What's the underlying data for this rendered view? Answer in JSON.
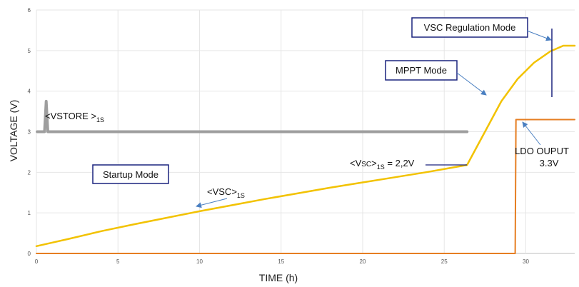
{
  "chart_data": {
    "type": "line",
    "xlabel": "TIME (h)",
    "ylabel": "VOLTAGE (V)",
    "xlim": [
      0,
      33
    ],
    "ylim": [
      0,
      6
    ],
    "x_ticks": [
      "0",
      "5",
      "10",
      "15",
      "20",
      "25",
      "30"
    ],
    "y_ticks": [
      "0",
      "1",
      "2",
      "3",
      "4",
      "5",
      "6"
    ],
    "grid": "both",
    "series": [
      {
        "name": "<VSC>1S",
        "color": "#f2c200",
        "x": [
          0,
          1,
          2,
          4,
          6,
          8,
          10,
          12,
          14,
          16,
          18,
          20,
          22,
          24,
          26.4,
          27.5,
          28.5,
          29.5,
          30.5,
          31.5,
          32.3,
          33
        ],
        "y": [
          0.18,
          0.27,
          0.36,
          0.55,
          0.72,
          0.88,
          1.04,
          1.19,
          1.34,
          1.48,
          1.62,
          1.75,
          1.88,
          2.01,
          2.18,
          3.0,
          3.75,
          4.3,
          4.7,
          4.98,
          5.12,
          5.12
        ]
      },
      {
        "name": "<VSTORE >1S",
        "color": "#9e9e9e",
        "x": [
          0.05,
          0.5,
          0.6,
          0.7,
          1,
          5,
          10,
          15,
          20,
          25,
          26.4
        ],
        "y": [
          3.0,
          3.0,
          3.75,
          3.0,
          3.0,
          3.0,
          3.0,
          3.0,
          3.0,
          3.0,
          3.0
        ]
      },
      {
        "name": "LDO OUPUT 3.3V",
        "color": "#e67e22",
        "x": [
          0,
          29.35,
          29.4,
          33
        ],
        "y": [
          0,
          0,
          3.3,
          3.3
        ]
      }
    ],
    "annotations": {
      "startup": "Startup Mode",
      "mppt": "MPPT Mode",
      "vsc_reg": "VSC Regulation Mode",
      "vstore_main": "<VSTORE >",
      "vstore_sub": "1S",
      "vsc_main": "<VSC>",
      "vsc_sub": "1S",
      "vsc22_pre": "<V",
      "vsc22_small": "SC",
      "vsc22_mid": ">",
      "vsc22_sub": "1S",
      "vsc22_post": " = 2,2V",
      "ldo_line1": "LDO OUPUT",
      "ldo_line2": "3.3V"
    }
  }
}
